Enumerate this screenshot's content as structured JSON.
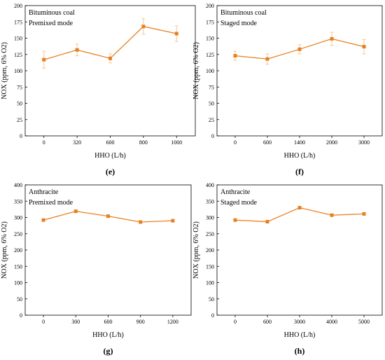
{
  "chart_data": [
    {
      "type": "line",
      "panel_label": "(e)",
      "annotation": [
        "Bituminous coal",
        "Premixed mode"
      ],
      "categories": [
        "0",
        "320",
        "600",
        "800",
        "1000"
      ],
      "xlabel": "HHO (L/h)",
      "ylabel": "NOX (ppm, 6% O2)",
      "ylim": [
        0,
        200
      ],
      "yticks": [
        "0",
        "25",
        "50",
        "75",
        "100",
        "125",
        "150",
        "175",
        "200"
      ],
      "grid": false,
      "series": [
        {
          "values": [
            117,
            132,
            119,
            168,
            157
          ],
          "errors": [
            13,
            9,
            7,
            12,
            12
          ]
        }
      ],
      "color": "#e8801f",
      "errorbar_color": "#f4c79a"
    },
    {
      "type": "line",
      "panel_label": "(f)",
      "annotation": [
        "Bituminous coal",
        "Staged mode"
      ],
      "categories": [
        "0",
        "600",
        "1400",
        "2000",
        "3000"
      ],
      "xlabel": "HHO (L/h)",
      "ylabel": "NOX (ppm, 6% O2)",
      "ylim": [
        0,
        200
      ],
      "yticks": [
        "0",
        "25",
        "50",
        "75",
        "100",
        "125",
        "150",
        "175",
        "200"
      ],
      "grid": false,
      "series": [
        {
          "values": [
            123,
            118,
            133,
            149,
            137
          ],
          "errors": [
            7,
            8,
            7,
            10,
            11
          ]
        }
      ],
      "color": "#e8801f",
      "errorbar_color": "#f4c79a"
    },
    {
      "type": "line",
      "panel_label": "(g)",
      "annotation": [
        "Anthracite",
        "Premixed mode"
      ],
      "categories": [
        "0",
        "300",
        "600",
        "900",
        "1200"
      ],
      "xlabel": "HHO (L/h)",
      "ylabel": "NOX (ppm, 6% O2)",
      "ylim": [
        0,
        400
      ],
      "yticks": [
        "0",
        "50",
        "100",
        "150",
        "200",
        "250",
        "300",
        "350",
        "400"
      ],
      "grid": false,
      "series": [
        {
          "values": [
            292,
            319,
            304,
            286,
            290
          ],
          "errors": [
            0,
            0,
            0,
            0,
            0
          ]
        }
      ],
      "color": "#e8801f",
      "errorbar_color": "#f4c79a"
    },
    {
      "type": "line",
      "panel_label": "(h)",
      "annotation": [
        "Anthracite",
        "Staged mode"
      ],
      "categories": [
        "0",
        "600",
        "3000",
        "4000",
        "5000"
      ],
      "xlabel": "HHO (L/h)",
      "ylabel": "NOX (ppm, 6% O2)",
      "ylim": [
        0,
        400
      ],
      "yticks": [
        "0",
        "50",
        "100",
        "150",
        "200",
        "250",
        "300",
        "350",
        "400"
      ],
      "grid": false,
      "series": [
        {
          "values": [
            292,
            287,
            330,
            307,
            311
          ],
          "errors": [
            0,
            0,
            0,
            0,
            0
          ]
        }
      ],
      "color": "#e8801f",
      "errorbar_color": "#f4c79a"
    }
  ]
}
